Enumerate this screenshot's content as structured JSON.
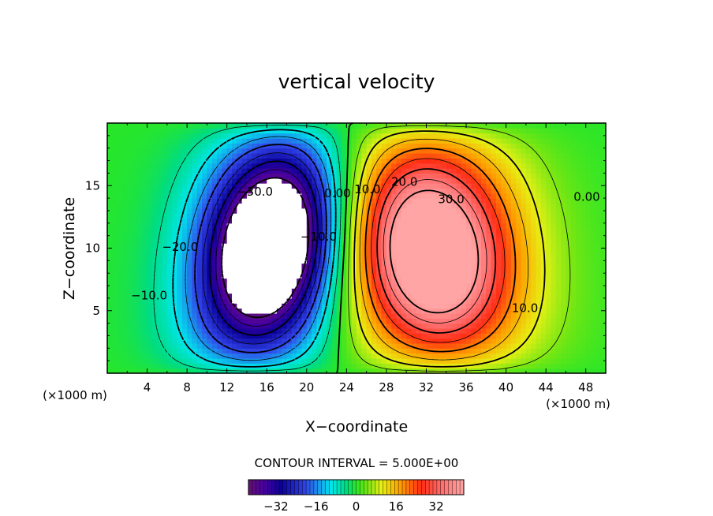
{
  "chart_data": {
    "type": "contour",
    "title": "vertical velocity",
    "xlabel": "X−coordinate",
    "ylabel": "Z−coordinate",
    "x_unit": "(×1000 m)",
    "z_unit": "(×1000 m)",
    "xlim": [
      0,
      50
    ],
    "ylim": [
      0,
      20
    ],
    "x_ticks": [
      4,
      8,
      12,
      16,
      20,
      24,
      28,
      32,
      36,
      40,
      44,
      48
    ],
    "x_tick_labels": [
      "4",
      "8",
      "12",
      "16",
      "20",
      "24",
      "28",
      "32",
      "36",
      "40",
      "44",
      "48"
    ],
    "y_ticks": [
      5,
      10,
      15
    ],
    "y_tick_labels": [
      "5",
      "10",
      "15"
    ],
    "contour_interval_text": "CONTOUR INTERVAL = 5.000E+00",
    "contour_interval": 5.0,
    "downdraft_center": {
      "x": 16.3,
      "z": 10.3,
      "peak": -40
    },
    "updraft_center": {
      "x": 32.5,
      "z": 9.6,
      "peak": 37
    },
    "contour_labels": [
      {
        "text": "−30.0",
        "x": 14.8,
        "z": 14.5
      },
      {
        "text": "−20.0",
        "x": 7.3,
        "z": 10.1
      },
      {
        "text": "−10.0",
        "x": 4.2,
        "z": 6.2
      },
      {
        "text": "−10.0",
        "x": 21.2,
        "z": 10.9
      },
      {
        "text": "0.00",
        "x": 23.1,
        "z": 14.4
      },
      {
        "text": "10.0",
        "x": 26.1,
        "z": 14.7
      },
      {
        "text": "20.0",
        "x": 29.8,
        "z": 15.3
      },
      {
        "text": "30.0",
        "x": 34.5,
        "z": 13.9
      },
      {
        "text": "10.0",
        "x": 41.9,
        "z": 5.2
      },
      {
        "text": "0.00",
        "x": 48.1,
        "z": 14.1
      }
    ],
    "colorbar": {
      "range": [
        -43,
        43
      ],
      "ticks": [
        -32,
        -16,
        0,
        16,
        32
      ],
      "tick_labels": [
        "−32",
        "−16",
        "0",
        "16",
        "32"
      ]
    }
  }
}
